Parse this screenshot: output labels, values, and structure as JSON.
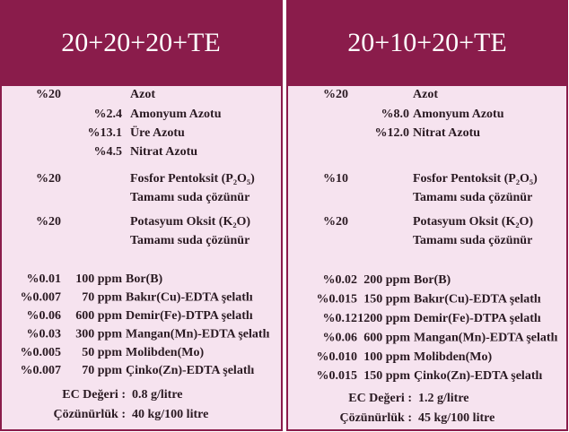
{
  "panels": [
    {
      "title": "20+20+20+TE",
      "nitrogen": {
        "value": "%20",
        "label": "Azot",
        "forms": [
          {
            "value": "%2.4",
            "label": "Amonyum Azotu"
          },
          {
            "value": "%13.1",
            "label": "Üre Azotu"
          },
          {
            "value": "%4.5",
            "label": "Nitrat Azotu"
          }
        ]
      },
      "phosphorus": {
        "value": "%20",
        "label": "Fosfor Pentoksit (P₂O₅)",
        "note": "Tamamı suda çözünür"
      },
      "potassium": {
        "value": "%20",
        "label": "Potasyum Oksit (K₂O)",
        "note": "Tamamı suda çözünür"
      },
      "micro": [
        {
          "percent": "%0.01",
          "ppm": "100 ppm",
          "label": "Bor(B)"
        },
        {
          "percent": "%0.007",
          "ppm": "70 ppm",
          "label": "Bakır(Cu)-EDTA şelatlı"
        },
        {
          "percent": "%0.06",
          "ppm": "600 ppm",
          "label": "Demir(Fe)-DTPA şelatlı"
        },
        {
          "percent": "%0.03",
          "ppm": "300 ppm",
          "label": "Mangan(Mn)-EDTA şelatlı"
        },
        {
          "percent": "%0.005",
          "ppm": "50 ppm",
          "label": "Molibden(Mo)"
        },
        {
          "percent": "%0.007",
          "ppm": "70 ppm",
          "label": "Çinko(Zn)-EDTA şelatlı"
        }
      ],
      "ec": {
        "label": "EC Değeri :",
        "value": "0.8 g/litre"
      },
      "solubility": {
        "label": "Çözünürlük :",
        "value": "40 kg/100 litre"
      }
    },
    {
      "title": "20+10+20+TE",
      "nitrogen": {
        "value": "%20",
        "label": "Azot",
        "forms": [
          {
            "value": "%8.0",
            "label": "Amonyum Azotu"
          },
          {
            "value": "%12.0",
            "label": "Nitrat Azotu"
          }
        ]
      },
      "phosphorus": {
        "value": "%10",
        "label": "Fosfor Pentoksit (P₂O₅)",
        "note": "Tamamı suda çözünür"
      },
      "potassium": {
        "value": "%20",
        "label": "Potasyum Oksit (K₂O)",
        "note": "Tamamı suda çözünür"
      },
      "micro": [
        {
          "percent": "%0.02",
          "ppm": "200 ppm",
          "label": "Bor(B)"
        },
        {
          "percent": "%0.015",
          "ppm": "150 ppm",
          "label": "Bakır(Cu)-EDTA şelatlı"
        },
        {
          "percent": "%0.12",
          "ppm": "1200 ppm",
          "label": "Demir(Fe)-DTPA şelatlı"
        },
        {
          "percent": "%0.06",
          "ppm": "600 ppm",
          "label": "Mangan(Mn)-EDTA şelatlı"
        },
        {
          "percent": "%0.010",
          "ppm": "100 ppm",
          "label": "Molibden(Mo)"
        },
        {
          "percent": "%0.015",
          "ppm": "150 ppm",
          "label": "Çinko(Zn)-EDTA şelatlı"
        }
      ],
      "ec": {
        "label": "EC Değeri :",
        "value": "1.2 g/litre"
      },
      "solubility": {
        "label": "Çözünürlük :",
        "value": "45 kg/100 litre"
      }
    }
  ]
}
